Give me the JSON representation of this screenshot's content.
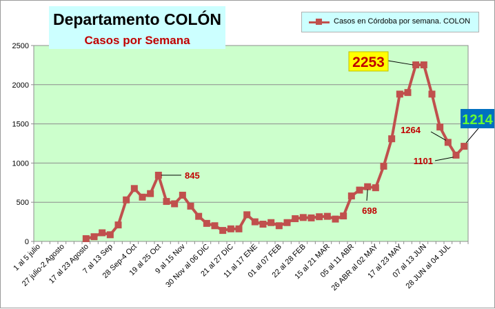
{
  "chart_data": {
    "type": "line",
    "title": "Departamento COLÓN",
    "subtitle": "Casos por Semana",
    "ylim": [
      0,
      2500
    ],
    "yticks": [
      0,
      500,
      1000,
      1500,
      2000,
      2500
    ],
    "grid": true,
    "legend_position": "top-right",
    "colors": {
      "series": "#c0504d",
      "plot_background": "#ccffcc",
      "title_background": "#ccffff",
      "subtitle": "#c00000",
      "label_text": "#c00000",
      "highlight_2253_background": "#ffff00",
      "highlight_1214_background": "#0070c0",
      "highlight_1214_text": "#66ff33"
    },
    "x_labels": [
      "1 al 5 julio",
      "27 julio-2 Agosto",
      "17 al 23 Agosto",
      "7 al 13 Sep",
      "28 Sep-4 Oct",
      "19 al 25 Oct",
      "9 al 15 Nov",
      "30 Nov al 06 DIC",
      "21 al 27 DIC",
      "11 al 17 ENE",
      "01 al 07 FEB",
      "22 al 28 FEB",
      "15 al 21 MAR",
      "05 al 11 ABR",
      "26 ABR al 02 MAY",
      "17 al 23 MAY",
      "07 al 13 JUN",
      "28 JUN al 04 JUL"
    ],
    "series": [
      {
        "name": "Casos en Córdoba por semana. COLON",
        "values": [
          null,
          null,
          null,
          null,
          null,
          null,
          35,
          60,
          110,
          85,
          210,
          530,
          675,
          565,
          610,
          845,
          510,
          480,
          590,
          450,
          320,
          230,
          200,
          140,
          160,
          160,
          340,
          250,
          220,
          240,
          200,
          240,
          290,
          305,
          300,
          315,
          320,
          285,
          325,
          580,
          655,
          698,
          685,
          960,
          1310,
          1880,
          1900,
          2253,
          2253,
          1880,
          1460,
          1264,
          1101,
          1214
        ]
      }
    ],
    "annotations": [
      {
        "text": "845",
        "value": 845
      },
      {
        "text": "698",
        "value": 698
      },
      {
        "text": "2253",
        "value": 2253
      },
      {
        "text": "1264",
        "value": 1264
      },
      {
        "text": "1101",
        "value": 1101
      },
      {
        "text": "1214",
        "value": 1214
      }
    ]
  }
}
